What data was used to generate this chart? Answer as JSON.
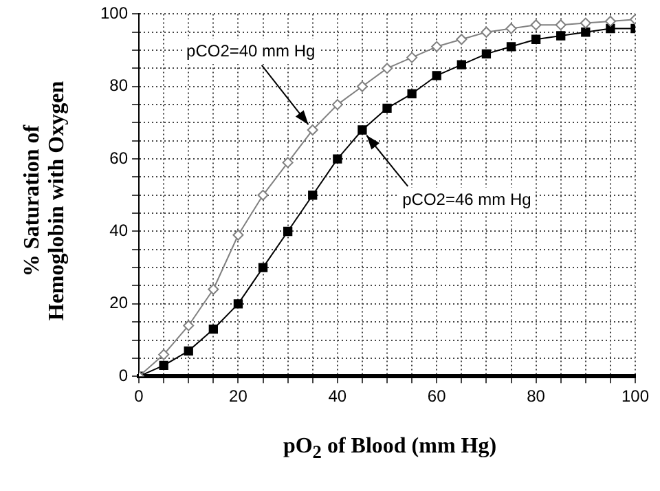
{
  "chart_data": {
    "type": "line",
    "xlabel": "pO$_{2}$ of Blood (mm Hg)",
    "ylabel": "% Saturation of\nHemoglobin with Oxygen",
    "x": [
      0,
      5,
      10,
      15,
      20,
      25,
      30,
      35,
      40,
      45,
      50,
      55,
      60,
      65,
      70,
      75,
      80,
      85,
      90,
      95,
      100
    ],
    "series": [
      {
        "color": "#808080",
        "marker": "diamond",
        "values": [
          0,
          6,
          14,
          24,
          39,
          50,
          59,
          68,
          75,
          80,
          85,
          88,
          91,
          93,
          95,
          96,
          97,
          97,
          97.5,
          98,
          98.5
        ]
      },
      {
        "color": "#000000",
        "marker": "square",
        "values": [
          0,
          3,
          7,
          13,
          20,
          30,
          40,
          50,
          60,
          68,
          74,
          78,
          83,
          86,
          89,
          91,
          93,
          94,
          95,
          96,
          96
        ]
      }
    ],
    "xlim": [
      0,
      100
    ],
    "ylim": [
      0,
      100
    ],
    "xticks": [
      0,
      {
        "value": 5,
        "label": null
      },
      {
        "value": 10,
        "label": null
      },
      {
        "value": 15,
        "label": null
      },
      20,
      {
        "value": 25,
        "label": null
      },
      {
        "value": 30,
        "label": null
      },
      {
        "value": 35,
        "label": null
      },
      40,
      {
        "value": 45,
        "label": null
      },
      {
        "value": 50,
        "label": null
      },
      {
        "value": 55,
        "label": null
      },
      60,
      {
        "value": 65,
        "label": null
      },
      {
        "value": 70,
        "label": null
      },
      {
        "value": 75,
        "label": null
      },
      80,
      {
        "value": 85,
        "label": null
      },
      {
        "value": 90,
        "label": null
      },
      {
        "value": 95,
        "label": null
      },
      100
    ],
    "yticks": [
      0,
      {
        "value": 5,
        "label": null
      },
      {
        "value": 10,
        "label": null
      },
      {
        "value": 15,
        "label": null
      },
      20,
      {
        "value": 25,
        "label": null
      },
      {
        "value": 30,
        "label": null
      },
      {
        "value": 35,
        "label": null
      },
      40,
      {
        "value": 45,
        "label": null
      },
      {
        "value": 50,
        "label": null
      },
      {
        "value": 55,
        "label": null
      },
      60,
      {
        "value": 65,
        "label": null
      },
      {
        "value": 70,
        "label": null
      },
      {
        "value": 75,
        "label": null
      },
      80,
      {
        "value": 85,
        "label": null
      },
      {
        "value": 90,
        "label": null
      },
      {
        "value": 95,
        "label": null
      },
      100
    ],
    "grid": true,
    "legend": false,
    "annotations": [
      {
        "text": "pCO2=40 mm Hg",
        "x": 35,
        "y": 68
      },
      {
        "text": "pCO2=46 mm Hg",
        "x": 45,
        "y": 68
      }
    ]
  }
}
